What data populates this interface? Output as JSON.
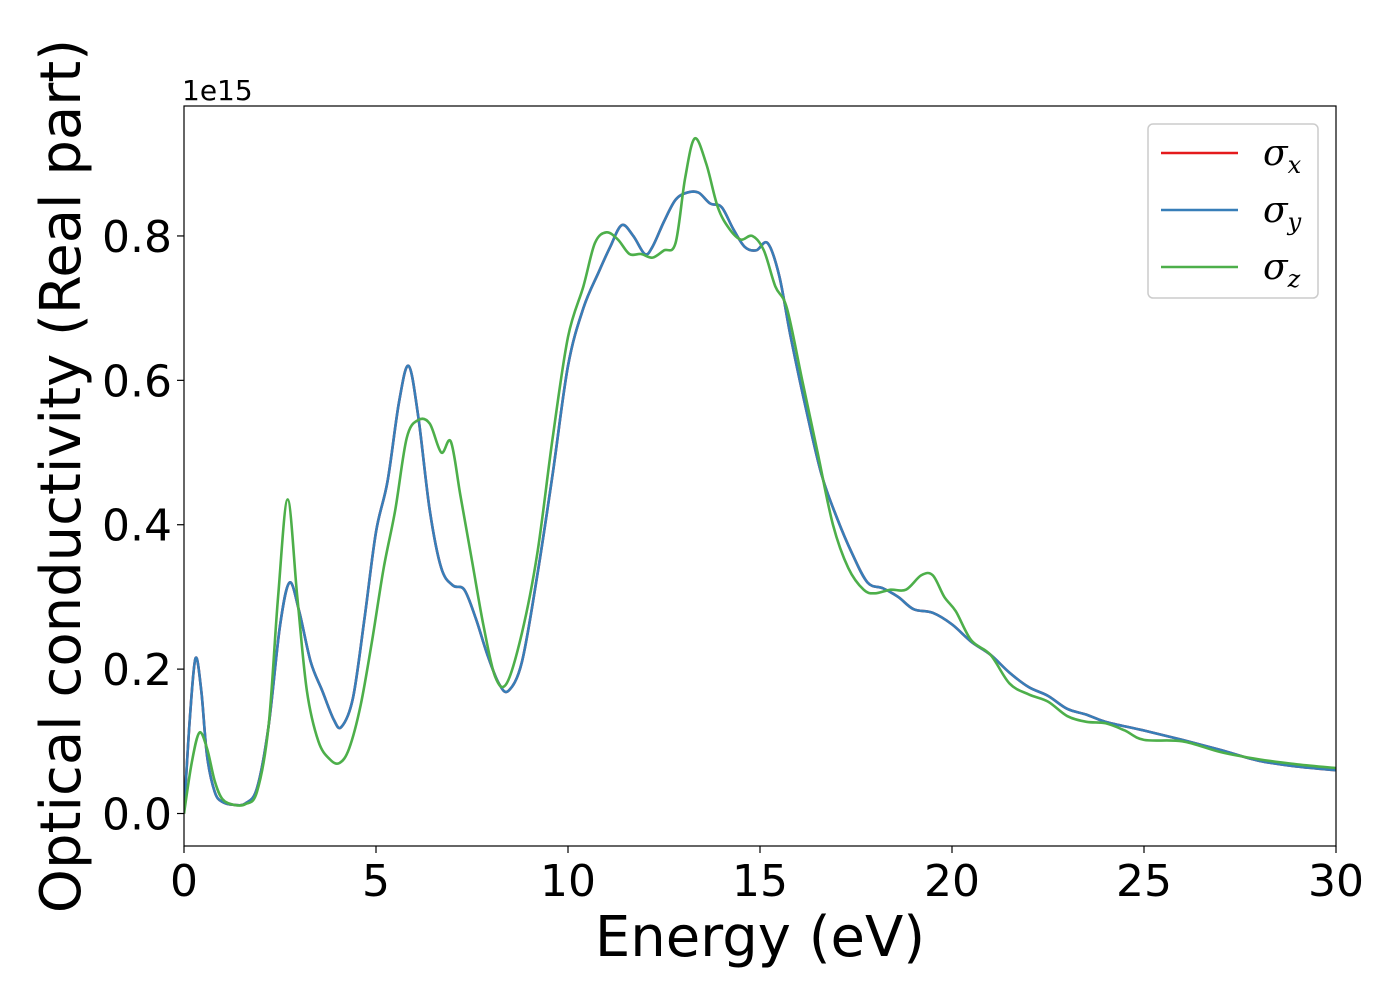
{
  "chart_data": {
    "type": "line",
    "title": "",
    "xlabel": "Energy (eV)",
    "ylabel": "Optical conductivity (Real part)",
    "y_offset_text": "1e15",
    "xlim": [
      0,
      30
    ],
    "ylim": [
      -0.045,
      0.98
    ],
    "xticks": [
      0,
      5,
      10,
      15,
      20,
      25,
      30
    ],
    "xtick_labels": [
      "0",
      "5",
      "10",
      "15",
      "20",
      "25",
      "30"
    ],
    "yticks": [
      0.0,
      0.2,
      0.4,
      0.6,
      0.8
    ],
    "ytick_labels": [
      "0.0",
      "0.2",
      "0.4",
      "0.6",
      "0.8"
    ],
    "grid": false,
    "legend_position": "top-right",
    "series": [
      {
        "name": "σx",
        "legend_symbol": "σ",
        "legend_subscript": "x",
        "color": "#e41a1c",
        "x": [
          0,
          0.15,
          0.3,
          0.45,
          0.6,
          0.8,
          1.0,
          1.3,
          1.6,
          1.9,
          2.2,
          2.5,
          2.75,
          3.0,
          3.3,
          3.6,
          3.9,
          4.1,
          4.4,
          4.7,
          5.0,
          5.3,
          5.6,
          5.85,
          6.1,
          6.4,
          6.7,
          7.0,
          7.3,
          7.6,
          7.9,
          8.2,
          8.45,
          8.8,
          9.2,
          9.6,
          10.0,
          10.4,
          10.8,
          11.1,
          11.4,
          11.7,
          12.0,
          12.2,
          12.5,
          12.8,
          13.1,
          13.4,
          13.7,
          14.0,
          14.3,
          14.6,
          14.9,
          15.2,
          15.5,
          15.8,
          16.2,
          16.6,
          17.0,
          17.4,
          17.8,
          18.2,
          18.6,
          19.0,
          19.5,
          20.0,
          20.5,
          21.0,
          21.5,
          22.0,
          22.5,
          23.0,
          23.5,
          24.0,
          25.0,
          26.0,
          27.0,
          28.0,
          29.0,
          30.0
        ],
        "values": [
          0.0,
          0.13,
          0.215,
          0.17,
          0.08,
          0.03,
          0.016,
          0.012,
          0.014,
          0.035,
          0.12,
          0.26,
          0.32,
          0.28,
          0.21,
          0.17,
          0.13,
          0.12,
          0.16,
          0.27,
          0.39,
          0.46,
          0.57,
          0.62,
          0.55,
          0.42,
          0.34,
          0.316,
          0.31,
          0.27,
          0.22,
          0.18,
          0.17,
          0.21,
          0.33,
          0.47,
          0.62,
          0.7,
          0.75,
          0.785,
          0.815,
          0.8,
          0.775,
          0.785,
          0.82,
          0.85,
          0.86,
          0.86,
          0.845,
          0.84,
          0.81,
          0.785,
          0.78,
          0.79,
          0.745,
          0.66,
          0.56,
          0.47,
          0.41,
          0.36,
          0.32,
          0.312,
          0.3,
          0.283,
          0.278,
          0.262,
          0.238,
          0.22,
          0.195,
          0.175,
          0.163,
          0.145,
          0.137,
          0.127,
          0.115,
          0.102,
          0.088,
          0.073,
          0.065,
          0.06
        ]
      },
      {
        "name": "σy",
        "legend_symbol": "σ",
        "legend_subscript": "y",
        "color": "#377eb8",
        "x": [
          0,
          0.15,
          0.3,
          0.45,
          0.6,
          0.8,
          1.0,
          1.3,
          1.6,
          1.9,
          2.2,
          2.5,
          2.75,
          3.0,
          3.3,
          3.6,
          3.9,
          4.1,
          4.4,
          4.7,
          5.0,
          5.3,
          5.6,
          5.85,
          6.1,
          6.4,
          6.7,
          7.0,
          7.3,
          7.6,
          7.9,
          8.2,
          8.45,
          8.8,
          9.2,
          9.6,
          10.0,
          10.4,
          10.8,
          11.1,
          11.4,
          11.7,
          12.0,
          12.2,
          12.5,
          12.8,
          13.1,
          13.4,
          13.7,
          14.0,
          14.3,
          14.6,
          14.9,
          15.2,
          15.5,
          15.8,
          16.2,
          16.6,
          17.0,
          17.4,
          17.8,
          18.2,
          18.6,
          19.0,
          19.5,
          20.0,
          20.5,
          21.0,
          21.5,
          22.0,
          22.5,
          23.0,
          23.5,
          24.0,
          25.0,
          26.0,
          27.0,
          28.0,
          29.0,
          30.0
        ],
        "values": [
          0.0,
          0.13,
          0.215,
          0.17,
          0.08,
          0.03,
          0.016,
          0.012,
          0.014,
          0.035,
          0.12,
          0.26,
          0.32,
          0.28,
          0.21,
          0.17,
          0.13,
          0.12,
          0.16,
          0.27,
          0.39,
          0.46,
          0.57,
          0.62,
          0.55,
          0.42,
          0.34,
          0.316,
          0.31,
          0.27,
          0.22,
          0.18,
          0.17,
          0.21,
          0.33,
          0.47,
          0.62,
          0.7,
          0.75,
          0.785,
          0.815,
          0.8,
          0.775,
          0.785,
          0.82,
          0.85,
          0.86,
          0.86,
          0.845,
          0.84,
          0.81,
          0.785,
          0.78,
          0.79,
          0.745,
          0.66,
          0.56,
          0.47,
          0.41,
          0.36,
          0.32,
          0.312,
          0.3,
          0.283,
          0.278,
          0.262,
          0.238,
          0.22,
          0.195,
          0.175,
          0.163,
          0.145,
          0.137,
          0.127,
          0.115,
          0.102,
          0.088,
          0.073,
          0.065,
          0.06
        ]
      },
      {
        "name": "σz",
        "legend_symbol": "σ",
        "legend_subscript": "z",
        "color": "#4daf4a",
        "x": [
          0,
          0.2,
          0.4,
          0.6,
          0.8,
          1.0,
          1.3,
          1.6,
          1.9,
          2.2,
          2.45,
          2.7,
          2.95,
          3.2,
          3.5,
          3.8,
          4.05,
          4.3,
          4.6,
          4.9,
          5.2,
          5.5,
          5.8,
          6.1,
          6.4,
          6.7,
          6.95,
          7.2,
          7.5,
          7.8,
          8.1,
          8.4,
          8.8,
          9.2,
          9.6,
          10.0,
          10.4,
          10.7,
          11.0,
          11.3,
          11.6,
          11.9,
          12.2,
          12.5,
          12.8,
          13.05,
          13.3,
          13.6,
          13.9,
          14.2,
          14.5,
          14.8,
          15.1,
          15.4,
          15.7,
          16.1,
          16.5,
          16.9,
          17.3,
          17.7,
          18.0,
          18.4,
          18.8,
          19.2,
          19.5,
          19.8,
          20.1,
          20.5,
          21.0,
          21.5,
          22.0,
          22.5,
          23.0,
          23.5,
          24.0,
          24.5,
          25.0,
          26.0,
          27.0,
          28.0,
          29.0,
          30.0
        ],
        "values": [
          0.0,
          0.07,
          0.112,
          0.09,
          0.045,
          0.02,
          0.012,
          0.013,
          0.03,
          0.12,
          0.3,
          0.435,
          0.3,
          0.17,
          0.1,
          0.075,
          0.07,
          0.09,
          0.15,
          0.24,
          0.34,
          0.42,
          0.52,
          0.545,
          0.54,
          0.5,
          0.515,
          0.44,
          0.35,
          0.26,
          0.19,
          0.18,
          0.25,
          0.36,
          0.52,
          0.66,
          0.73,
          0.79,
          0.805,
          0.795,
          0.775,
          0.775,
          0.77,
          0.78,
          0.79,
          0.88,
          0.935,
          0.9,
          0.84,
          0.81,
          0.795,
          0.8,
          0.78,
          0.73,
          0.7,
          0.6,
          0.5,
          0.4,
          0.34,
          0.31,
          0.305,
          0.31,
          0.31,
          0.33,
          0.33,
          0.3,
          0.28,
          0.24,
          0.22,
          0.18,
          0.165,
          0.155,
          0.135,
          0.127,
          0.125,
          0.115,
          0.102,
          0.1,
          0.085,
          0.075,
          0.068,
          0.063
        ]
      }
    ]
  }
}
